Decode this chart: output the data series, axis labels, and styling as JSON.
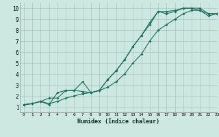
{
  "xlabel": "Humidex (Indice chaleur)",
  "bg_color": "#cce8e0",
  "grid_color": "#aac8c0",
  "line_color": "#1a6b5a",
  "xlim": [
    -0.5,
    23
  ],
  "ylim": [
    0.5,
    10.5
  ],
  "xticks": [
    0,
    1,
    2,
    3,
    4,
    5,
    6,
    7,
    8,
    9,
    10,
    11,
    12,
    13,
    14,
    15,
    16,
    17,
    18,
    19,
    20,
    21,
    22,
    23
  ],
  "yticks": [
    1,
    2,
    3,
    4,
    5,
    6,
    7,
    8,
    9,
    10
  ],
  "line1_x": [
    0,
    1,
    2,
    3,
    4,
    5,
    6,
    7,
    8,
    9,
    10,
    11,
    12,
    13,
    14,
    15,
    16,
    17,
    18,
    19,
    20,
    21,
    22,
    23
  ],
  "line1_y": [
    1.2,
    1.3,
    1.5,
    1.2,
    2.3,
    2.5,
    2.5,
    2.4,
    2.3,
    2.5,
    3.5,
    4.3,
    5.3,
    6.5,
    7.5,
    8.5,
    9.7,
    9.7,
    9.8,
    10.0,
    10.0,
    10.0,
    9.5,
    9.5
  ],
  "line2_x": [
    0,
    1,
    2,
    3,
    4,
    5,
    6,
    7,
    8,
    9,
    10,
    11,
    12,
    13,
    14,
    15,
    16,
    17,
    18,
    19,
    20,
    21,
    22,
    23
  ],
  "line2_y": [
    1.2,
    1.3,
    1.5,
    1.8,
    1.8,
    2.5,
    2.5,
    3.3,
    2.3,
    2.5,
    3.5,
    4.3,
    5.3,
    6.5,
    7.5,
    8.7,
    9.7,
    9.5,
    9.7,
    10.0,
    10.0,
    9.8,
    9.3,
    9.5
  ],
  "line3_x": [
    0,
    1,
    2,
    3,
    4,
    5,
    6,
    7,
    8,
    9,
    10,
    11,
    12,
    13,
    14,
    15,
    16,
    17,
    18,
    19,
    20,
    21,
    22,
    23
  ],
  "line3_y": [
    1.2,
    1.3,
    1.5,
    1.3,
    1.5,
    1.8,
    2.0,
    2.2,
    2.3,
    2.5,
    2.8,
    3.3,
    4.0,
    5.0,
    5.8,
    7.0,
    8.0,
    8.5,
    9.0,
    9.5,
    9.8,
    9.8,
    9.5,
    9.5
  ]
}
